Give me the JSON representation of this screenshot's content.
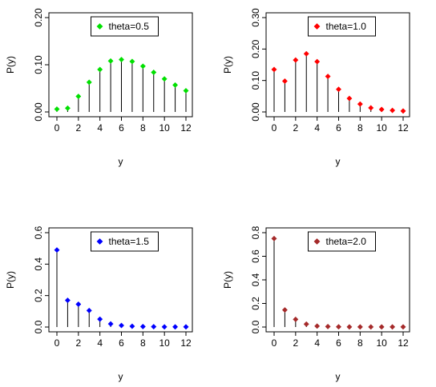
{
  "chart_data": [
    {
      "type": "scatter",
      "style": "lollipop",
      "xlabel": "y",
      "ylabel": "P(y)",
      "legend": {
        "label": "theta=0.5",
        "placement": "top-center"
      },
      "color": "#00e000",
      "x": [
        0,
        1,
        2,
        3,
        4,
        5,
        6,
        7,
        8,
        9,
        10,
        11,
        12
      ],
      "values": [
        0.006,
        0.008,
        0.033,
        0.063,
        0.09,
        0.108,
        0.111,
        0.107,
        0.097,
        0.084,
        0.07,
        0.057,
        0.045
      ],
      "xlim": [
        0,
        12
      ],
      "ylim": [
        0,
        0.2
      ],
      "xticks": [
        0,
        2,
        4,
        6,
        8,
        10,
        12
      ],
      "yticks": [
        0.0,
        0.1,
        0.2
      ],
      "ytick_labels": [
        "0.00",
        "0.10",
        "0.20"
      ]
    },
    {
      "type": "scatter",
      "style": "lollipop",
      "xlabel": "y",
      "ylabel": "P(y)",
      "legend": {
        "label": "theta=1.0",
        "placement": "top-center"
      },
      "color": "#ff0000",
      "x": [
        0,
        1,
        2,
        3,
        4,
        5,
        6,
        7,
        8,
        9,
        10,
        11,
        12
      ],
      "values": [
        0.135,
        0.098,
        0.165,
        0.185,
        0.16,
        0.113,
        0.072,
        0.043,
        0.025,
        0.013,
        0.008,
        0.005,
        0.003
      ],
      "xlim": [
        0,
        12
      ],
      "ylim": [
        0,
        0.3
      ],
      "xticks": [
        0,
        2,
        4,
        6,
        8,
        10,
        12
      ],
      "yticks": [
        0.0,
        0.1,
        0.2,
        0.3
      ],
      "ytick_labels": [
        "0.00",
        "0.10",
        "0.20",
        "0.30"
      ]
    },
    {
      "type": "scatter",
      "style": "lollipop",
      "xlabel": "y",
      "ylabel": "P(y)",
      "legend": {
        "label": "theta=1.5",
        "placement": "top-center"
      },
      "color": "#0000ff",
      "x": [
        0,
        1,
        2,
        3,
        4,
        5,
        6,
        7,
        8,
        9,
        10,
        11,
        12
      ],
      "values": [
        0.49,
        0.17,
        0.145,
        0.105,
        0.05,
        0.02,
        0.01,
        0.005,
        0.003,
        0.002,
        0.001,
        0.001,
        0.001
      ],
      "xlim": [
        0,
        12
      ],
      "ylim": [
        0,
        0.6
      ],
      "xticks": [
        0,
        2,
        4,
        6,
        8,
        10,
        12
      ],
      "yticks": [
        0.0,
        0.2,
        0.4,
        0.6
      ],
      "ytick_labels": [
        "0.0",
        "0.2",
        "0.4",
        "0.6"
      ]
    },
    {
      "type": "scatter",
      "style": "lollipop",
      "xlabel": "y",
      "ylabel": "P(y)",
      "legend": {
        "label": "theta=2.0",
        "placement": "top-center"
      },
      "color": "#a52a2a",
      "x": [
        0,
        1,
        2,
        3,
        4,
        5,
        6,
        7,
        8,
        9,
        10,
        11,
        12
      ],
      "values": [
        0.75,
        0.145,
        0.065,
        0.025,
        0.008,
        0.004,
        0.002,
        0.001,
        0.001,
        0.001,
        0.001,
        0.001,
        0.001
      ],
      "xlim": [
        0,
        12
      ],
      "ylim": [
        0,
        0.8
      ],
      "xticks": [
        0,
        2,
        4,
        6,
        8,
        10,
        12
      ],
      "yticks": [
        0.0,
        0.2,
        0.4,
        0.6,
        0.8
      ],
      "ytick_labels": [
        "0.0",
        "0.2",
        "0.4",
        "0.6",
        "0.8"
      ]
    }
  ]
}
